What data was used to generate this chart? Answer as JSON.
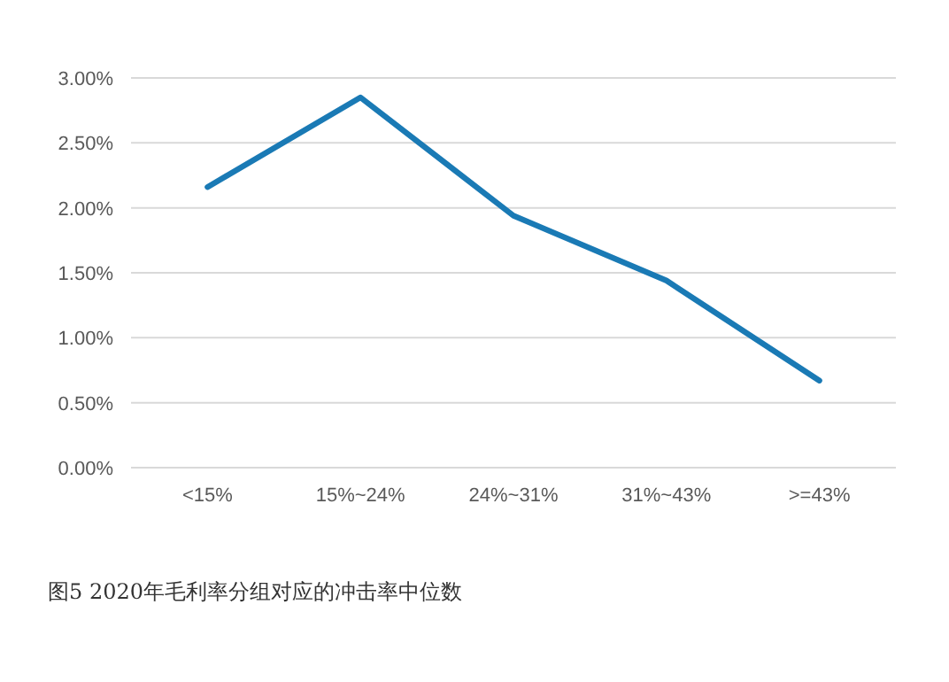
{
  "chart_data": {
    "type": "line",
    "title": "图5 2020年毛利率分组对应的冲击率中位数",
    "categories": [
      "<15%",
      "15%~24%",
      "24%~31%",
      "31%~43%",
      ">=43%"
    ],
    "series": [
      {
        "color": "#1a7ab5",
        "values": [
          2.16,
          2.85,
          1.94,
          1.44,
          0.67
        ]
      }
    ],
    "ylim": [
      0,
      3
    ],
    "yticks": [
      {
        "value": 0,
        "label": "0.00%"
      },
      {
        "value": 0.5,
        "label": "0.50%"
      },
      {
        "value": 1,
        "label": "1.00%"
      },
      {
        "value": 1.5,
        "label": "1.50%"
      },
      {
        "value": 2,
        "label": "2.00%"
      },
      {
        "value": 2.5,
        "label": "2.50%"
      },
      {
        "value": 3,
        "label": "3.00%"
      }
    ],
    "grid": "y",
    "marker": "none",
    "line_style": "solid"
  }
}
